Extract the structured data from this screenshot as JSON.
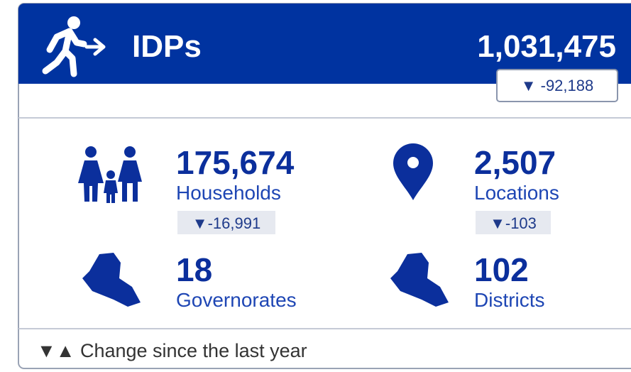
{
  "header": {
    "title": "IDPs",
    "value": "1,031,475",
    "change": "▼ -92,188"
  },
  "stats": [
    {
      "value": "175,674",
      "label": "Households",
      "change": "▼-16,991"
    },
    {
      "value": "2,507",
      "label": "Locations",
      "change": "▼-103"
    },
    {
      "value": "18",
      "label": "Governorates"
    },
    {
      "value": "102",
      "label": "Districts"
    }
  ],
  "footer": "▼▲ Change since the last year"
}
